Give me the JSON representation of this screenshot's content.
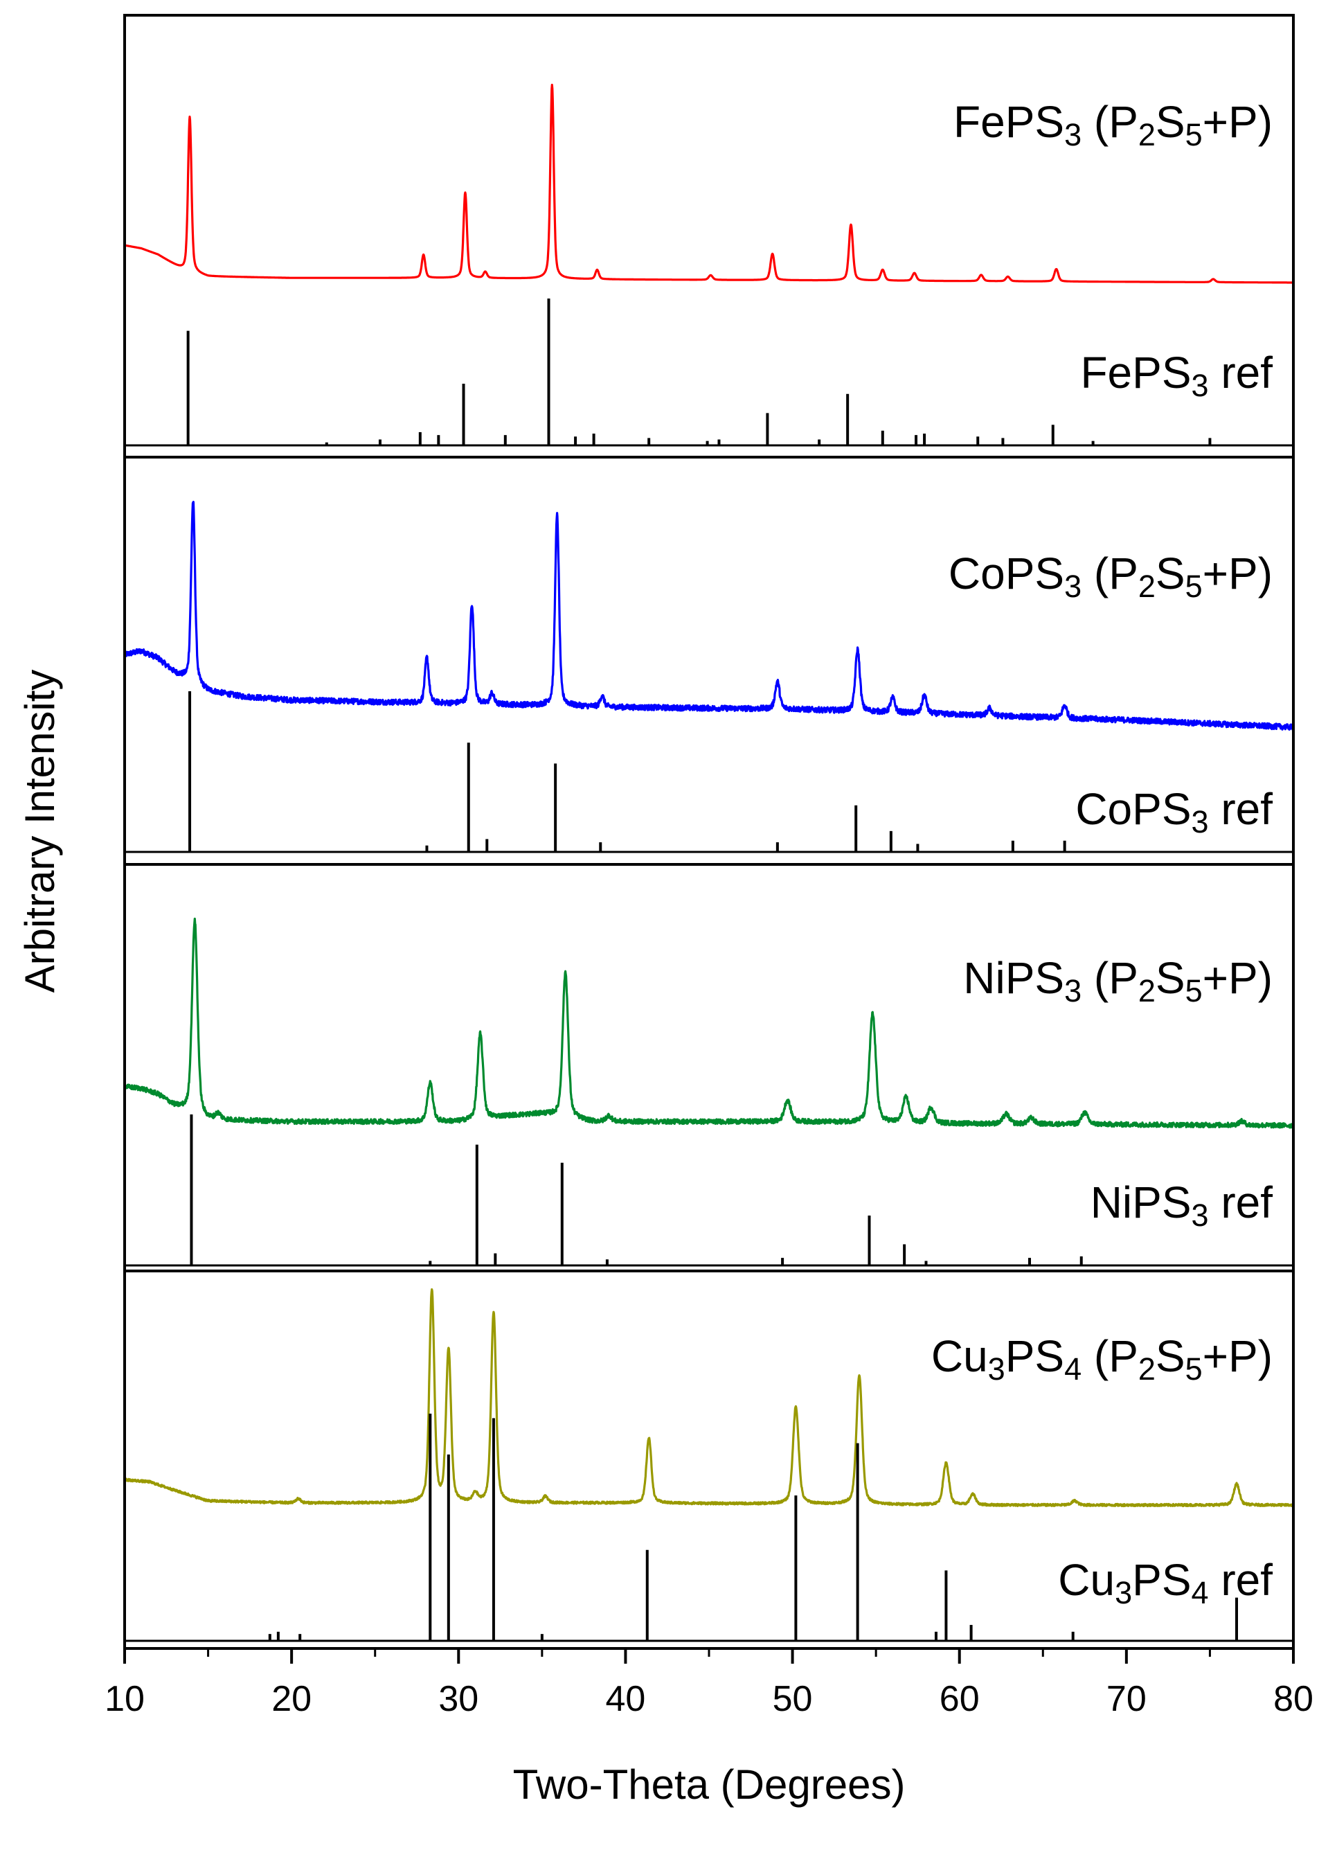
{
  "chart_data": {
    "type": "line",
    "title": "",
    "xlabel": "Two-Theta (Degrees)",
    "ylabel": "Arbitrary Intensity",
    "xlim": [
      10,
      80
    ],
    "xticks": [
      "10",
      "20",
      "30",
      "40",
      "50",
      "60",
      "70",
      "80"
    ],
    "grid": false,
    "legend": "none",
    "panels": [
      {
        "id": "fe",
        "labels": [
          "FePS3 (P2S5+P)",
          "FePS3 ref"
        ],
        "label_parts": {
          "exp": [
            [
              "FePS",
              "n"
            ],
            [
              "3",
              "s"
            ],
            [
              " (P",
              "n"
            ],
            [
              "2",
              "s"
            ],
            [
              "S",
              "n"
            ],
            [
              "5",
              "s"
            ],
            [
              "+P)",
              "n"
            ]
          ],
          "ref": [
            [
              "FePS",
              "n"
            ],
            [
              "3",
              "s"
            ],
            [
              " ref",
              "n"
            ]
          ]
        },
        "experimental": {
          "color": "#ff0000",
          "baseline": [
            [
              10,
              0.24
            ],
            [
              11,
              0.22
            ],
            [
              12,
              0.18
            ],
            [
              13.5,
              0.08
            ],
            [
              15,
              0.04
            ],
            [
              20,
              0.03
            ],
            [
              30,
              0.03
            ],
            [
              40,
              0.02
            ],
            [
              60,
              0.01
            ],
            [
              80,
              0.0
            ]
          ],
          "peaks": [
            [
              13.9,
              1.0
            ],
            [
              27.9,
              0.15
            ],
            [
              30.4,
              0.55
            ],
            [
              31.6,
              0.04
            ],
            [
              35.6,
              1.25
            ],
            [
              38.3,
              0.06
            ],
            [
              45.1,
              0.03
            ],
            [
              48.8,
              0.17
            ],
            [
              53.5,
              0.36
            ],
            [
              55.4,
              0.07
            ],
            [
              57.3,
              0.05
            ],
            [
              61.3,
              0.04
            ],
            [
              62.9,
              0.03
            ],
            [
              65.8,
              0.08
            ],
            [
              75.2,
              0.02
            ]
          ],
          "width": 0.14
        },
        "reference": {
          "color": "#000000",
          "sticks": [
            [
              13.8,
              0.78
            ],
            [
              22.1,
              0.02
            ],
            [
              25.3,
              0.04
            ],
            [
              27.7,
              0.09
            ],
            [
              28.8,
              0.07
            ],
            [
              30.3,
              0.42
            ],
            [
              32.8,
              0.07
            ],
            [
              35.4,
              1.0
            ],
            [
              37.0,
              0.06
            ],
            [
              38.1,
              0.08
            ],
            [
              41.4,
              0.05
            ],
            [
              44.9,
              0.03
            ],
            [
              45.6,
              0.04
            ],
            [
              48.5,
              0.22
            ],
            [
              51.6,
              0.04
            ],
            [
              53.3,
              0.35
            ],
            [
              55.4,
              0.1
            ],
            [
              57.4,
              0.07
            ],
            [
              57.9,
              0.08
            ],
            [
              61.1,
              0.06
            ],
            [
              62.6,
              0.05
            ],
            [
              65.6,
              0.14
            ],
            [
              68.0,
              0.03
            ],
            [
              75.0,
              0.05
            ]
          ]
        }
      },
      {
        "id": "co",
        "labels": [
          "CoPS3 (P2S5+P)",
          "CoPS3 ref"
        ],
        "label_parts": {
          "exp": [
            [
              "CoPS",
              "n"
            ],
            [
              "3",
              "s"
            ],
            [
              " (P",
              "n"
            ],
            [
              "2",
              "s"
            ],
            [
              "S",
              "n"
            ],
            [
              "5",
              "s"
            ],
            [
              "+P)",
              "n"
            ]
          ],
          "ref": [
            [
              "CoPS",
              "n"
            ],
            [
              "3",
              "s"
            ],
            [
              " ref",
              "n"
            ]
          ]
        },
        "experimental": {
          "color": "#0000ff",
          "baseline": [
            [
              10,
              0.4
            ],
            [
              11,
              0.42
            ],
            [
              12,
              0.38
            ],
            [
              13,
              0.3
            ],
            [
              15,
              0.2
            ],
            [
              17,
              0.17
            ],
            [
              20,
              0.15
            ],
            [
              30,
              0.13
            ],
            [
              40,
              0.11
            ],
            [
              50,
              0.1
            ],
            [
              60,
              0.07
            ],
            [
              70,
              0.04
            ],
            [
              80,
              0.0
            ]
          ],
          "peaks": [
            [
              14.1,
              1.0
            ],
            [
              28.1,
              0.25
            ],
            [
              30.8,
              0.55
            ],
            [
              32.0,
              0.06
            ],
            [
              35.9,
              1.05
            ],
            [
              38.6,
              0.06
            ],
            [
              49.1,
              0.15
            ],
            [
              53.9,
              0.34
            ],
            [
              56.0,
              0.08
            ],
            [
              57.9,
              0.1
            ],
            [
              61.8,
              0.04
            ],
            [
              66.3,
              0.07
            ]
          ],
          "width": 0.16,
          "noise": 0.015
        },
        "reference": {
          "color": "#000000",
          "sticks": [
            [
              13.9,
              1.0
            ],
            [
              28.1,
              0.04
            ],
            [
              30.6,
              0.68
            ],
            [
              31.7,
              0.08
            ],
            [
              35.8,
              0.55
            ],
            [
              38.5,
              0.06
            ],
            [
              49.1,
              0.06
            ],
            [
              53.8,
              0.29
            ],
            [
              55.9,
              0.13
            ],
            [
              57.5,
              0.05
            ],
            [
              63.2,
              0.07
            ],
            [
              66.3,
              0.07
            ]
          ]
        }
      },
      {
        "id": "ni",
        "labels": [
          "NiPS3 (P2S5+P)",
          "NiPS3 ref"
        ],
        "label_parts": {
          "exp": [
            [
              "NiPS",
              "n"
            ],
            [
              "3",
              "s"
            ],
            [
              " (P",
              "n"
            ],
            [
              "2",
              "s"
            ],
            [
              "S",
              "n"
            ],
            [
              "5",
              "s"
            ],
            [
              "+P)",
              "n"
            ]
          ],
          "ref": [
            [
              "NiPS",
              "n"
            ],
            [
              "3",
              "s"
            ],
            [
              " ref",
              "n"
            ]
          ]
        },
        "experimental": {
          "color": "#008a2e",
          "baseline": [
            [
              10,
              0.2
            ],
            [
              11,
              0.19
            ],
            [
              12,
              0.16
            ],
            [
              13,
              0.1
            ],
            [
              15,
              0.03
            ],
            [
              20,
              0.02
            ],
            [
              30,
              0.02
            ],
            [
              33,
              0.05
            ],
            [
              35,
              0.06
            ],
            [
              38,
              0.02
            ],
            [
              50,
              0.02
            ],
            [
              60,
              0.01
            ],
            [
              80,
              0.0
            ]
          ],
          "peaks": [
            [
              14.2,
              1.0
            ],
            [
              15.6,
              0.03
            ],
            [
              28.3,
              0.2
            ],
            [
              31.3,
              0.44
            ],
            [
              36.4,
              0.75
            ],
            [
              39.0,
              0.03
            ],
            [
              49.7,
              0.11
            ],
            [
              54.8,
              0.56
            ],
            [
              56.8,
              0.13
            ],
            [
              58.3,
              0.08
            ],
            [
              62.8,
              0.05
            ],
            [
              64.3,
              0.03
            ],
            [
              67.5,
              0.06
            ],
            [
              76.9,
              0.02
            ]
          ],
          "width": 0.22,
          "noise": 0.012
        },
        "reference": {
          "color": "#000000",
          "sticks": [
            [
              14.0,
              1.0
            ],
            [
              28.3,
              0.03
            ],
            [
              31.1,
              0.8
            ],
            [
              32.2,
              0.08
            ],
            [
              36.2,
              0.68
            ],
            [
              38.9,
              0.04
            ],
            [
              49.4,
              0.05
            ],
            [
              54.6,
              0.33
            ],
            [
              56.7,
              0.14
            ],
            [
              58.0,
              0.03
            ],
            [
              64.2,
              0.05
            ],
            [
              67.3,
              0.06
            ]
          ]
        }
      },
      {
        "id": "cu",
        "labels": [
          "Cu3PS4 (P2S5+P)",
          "Cu3PS4 ref"
        ],
        "label_parts": {
          "exp": [
            [
              "Cu",
              "n"
            ],
            [
              "3",
              "s"
            ],
            [
              "PS",
              "n"
            ],
            [
              "4",
              "s"
            ],
            [
              " (P",
              "n"
            ],
            [
              "2",
              "s"
            ],
            [
              "S",
              "n"
            ],
            [
              "5",
              "s"
            ],
            [
              "+P)",
              "n"
            ]
          ],
          "ref": [
            [
              "Cu",
              "n"
            ],
            [
              "3",
              "s"
            ],
            [
              "PS",
              "n"
            ],
            [
              "4",
              "s"
            ],
            [
              " ref",
              "n"
            ]
          ]
        },
        "experimental": {
          "color": "#999900",
          "baseline": [
            [
              10,
              0.12
            ],
            [
              11.5,
              0.11
            ],
            [
              13,
              0.07
            ],
            [
              15,
              0.02
            ],
            [
              20,
              0.01
            ],
            [
              40,
              0.01
            ],
            [
              60,
              0.0
            ],
            [
              80,
              0.0
            ]
          ],
          "peaks": [
            [
              20.4,
              0.02
            ],
            [
              28.4,
              1.0
            ],
            [
              29.4,
              0.72
            ],
            [
              31.0,
              0.04
            ],
            [
              32.1,
              0.9
            ],
            [
              35.2,
              0.03
            ],
            [
              41.4,
              0.31
            ],
            [
              50.2,
              0.46
            ],
            [
              54.0,
              0.61
            ],
            [
              59.2,
              0.2
            ],
            [
              60.8,
              0.05
            ],
            [
              66.9,
              0.02
            ],
            [
              76.6,
              0.1
            ]
          ],
          "width": 0.2,
          "noise": 0.005
        },
        "reference": {
          "color": "#000000",
          "sticks": [
            [
              18.7,
              0.03
            ],
            [
              19.2,
              0.04
            ],
            [
              20.5,
              0.03
            ],
            [
              28.3,
              1.0
            ],
            [
              29.4,
              0.82
            ],
            [
              32.1,
              0.98
            ],
            [
              35.0,
              0.03
            ],
            [
              41.3,
              0.4
            ],
            [
              50.2,
              0.64
            ],
            [
              53.9,
              0.87
            ],
            [
              58.6,
              0.04
            ],
            [
              59.2,
              0.31
            ],
            [
              60.7,
              0.07
            ],
            [
              66.8,
              0.04
            ],
            [
              76.6,
              0.19
            ]
          ]
        }
      }
    ]
  }
}
